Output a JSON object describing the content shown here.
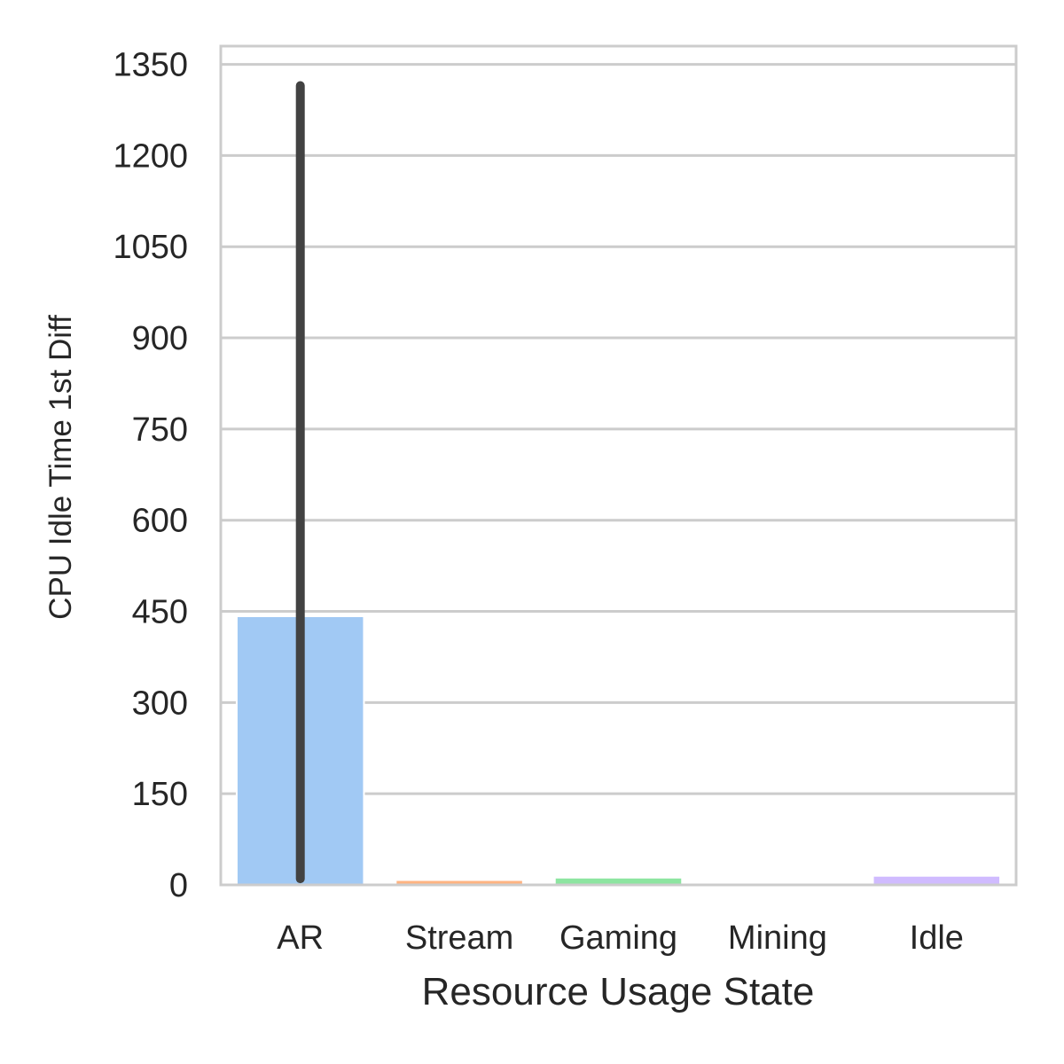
{
  "chart_data": {
    "type": "bar",
    "categories": [
      "AR",
      "Stream",
      "Gaming",
      "Mining",
      "Idle"
    ],
    "values": [
      442,
      8,
      12,
      0,
      15
    ],
    "error_bars": [
      {
        "low": 10,
        "high": 1315
      },
      null,
      null,
      null,
      null
    ],
    "colors": [
      "#a1c9f4",
      "#ffb482",
      "#8de5a1",
      "#ff9f9b",
      "#d0bbff"
    ],
    "error_bar_color": "#424242",
    "xlabel": "Resource Usage State",
    "ylabel": "CPU Idle Time 1st Diff",
    "ylim": [
      0,
      1380
    ],
    "yticks": [
      0,
      150,
      300,
      450,
      600,
      750,
      900,
      1050,
      1200,
      1350
    ],
    "grid": "horizontal",
    "frame_color": "#cccccc"
  }
}
